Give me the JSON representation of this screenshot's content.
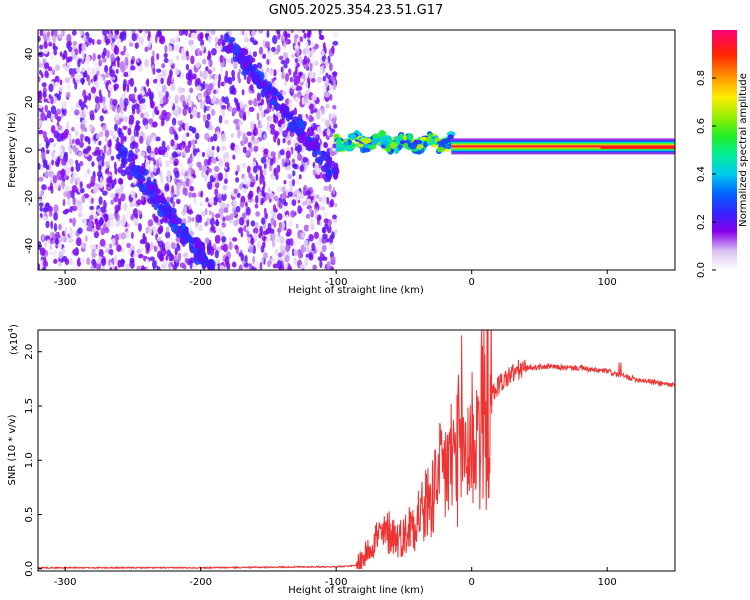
{
  "figure": {
    "title": "GN05.2025.354.23.51.G17"
  },
  "chart_data": [
    {
      "type": "heatmap",
      "xlabel": "Height of straight line (km)",
      "ylabel": "Frequency (Hz)",
      "xlim": [
        -320,
        150
      ],
      "ylim": [
        -50,
        50
      ],
      "xticks": [
        -300,
        -200,
        -100,
        0,
        100
      ],
      "yticks": [
        -40,
        -20,
        0,
        20,
        40
      ],
      "grid": false,
      "features": [
        {
          "name": "",
          "kind": "noise-field",
          "x_range": [
            -320,
            -100
          ],
          "y_range": [
            -50,
            50
          ],
          "level": 0.15
        },
        {
          "name": "",
          "kind": "diagonal-streak",
          "from": [
            -180,
            45
          ],
          "to": [
            -100,
            -10
          ],
          "level": 0.2
        },
        {
          "name": "",
          "kind": "diagonal-streak",
          "from": [
            -260,
            0
          ],
          "to": [
            -190,
            -50
          ],
          "level": 0.15
        },
        {
          "name": "",
          "kind": "wobbly-band",
          "x_range": [
            -100,
            -15
          ],
          "center_hz": 3,
          "level": 0.45
        },
        {
          "name": "",
          "kind": "steady-line",
          "x_range": [
            -15,
            150
          ],
          "center_hz": 1.5,
          "level": 0.95
        }
      ],
      "colorbar": {
        "label": "Normalized spectral amplitude",
        "range": [
          0,
          1
        ],
        "ticks": [
          0.0,
          0.2,
          0.4,
          0.6,
          0.8
        ]
      }
    },
    {
      "type": "line",
      "xlabel": "Height of straight line (km)",
      "ylabel": "SNR (10 * v/v)",
      "scale_note": "(x10",
      "scale_exp": "4",
      "xlim": [
        -320,
        150
      ],
      "ylim": [
        -0.02,
        2.2
      ],
      "xticks": [
        -300,
        -200,
        -100,
        0,
        100
      ],
      "yticks": [
        0.0,
        0.5,
        1.0,
        1.5,
        2.0
      ],
      "grid": false,
      "color": "#ee3333",
      "series": [
        {
          "name": "",
          "x": [
            -320,
            -200,
            -100,
            -85,
            -80,
            -75,
            -70,
            -65,
            -60,
            -55,
            -50,
            -45,
            -40,
            -35,
            -30,
            -25,
            -20,
            -15,
            -10,
            -5,
            0,
            5,
            10,
            15,
            20,
            25,
            30,
            35,
            40,
            50,
            60,
            70,
            80,
            90,
            100,
            110,
            120,
            130,
            140,
            150
          ],
          "y": [
            0.01,
            0.01,
            0.02,
            0.03,
            0.1,
            0.2,
            0.3,
            0.3,
            0.35,
            0.28,
            0.3,
            0.4,
            0.5,
            0.55,
            0.65,
            0.78,
            0.9,
            1.0,
            1.1,
            1.1,
            1.2,
            1.3,
            1.45,
            1.6,
            1.7,
            1.75,
            1.8,
            1.83,
            1.85,
            1.86,
            1.86,
            1.85,
            1.85,
            1.83,
            1.82,
            1.78,
            1.75,
            1.73,
            1.71,
            1.69
          ]
        }
      ]
    }
  ]
}
